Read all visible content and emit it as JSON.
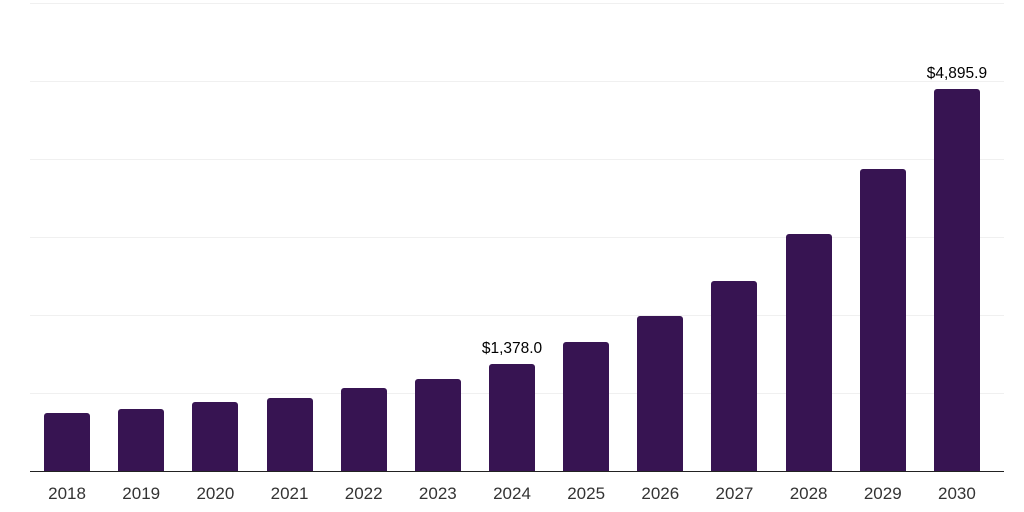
{
  "chart": {
    "background_color": "#ffffff",
    "bar_color": "#371452",
    "gridline_color": "#f0f0f0",
    "axis_line_color": "#222222",
    "x_label_color": "#333333",
    "data_label_color": "#000000"
  },
  "chart_data": {
    "type": "bar",
    "title": "",
    "xlabel": "",
    "ylabel": "",
    "categories": [
      "2018",
      "2019",
      "2020",
      "2021",
      "2022",
      "2023",
      "2024",
      "2025",
      "2026",
      "2027",
      "2028",
      "2029",
      "2030"
    ],
    "values": [
      750,
      790,
      880,
      940,
      1065,
      1180,
      1378.0,
      1650,
      1990,
      2440,
      3040,
      3870,
      4895.9
    ],
    "data_labels": {
      "2024": "$1,378.0",
      "2030": "$4,895.9"
    },
    "ylim": [
      0,
      6000
    ],
    "grid_step": 1000,
    "grid": "horizontal-only",
    "y_axis_tick_labels_visible": false,
    "legend_position": "none"
  }
}
